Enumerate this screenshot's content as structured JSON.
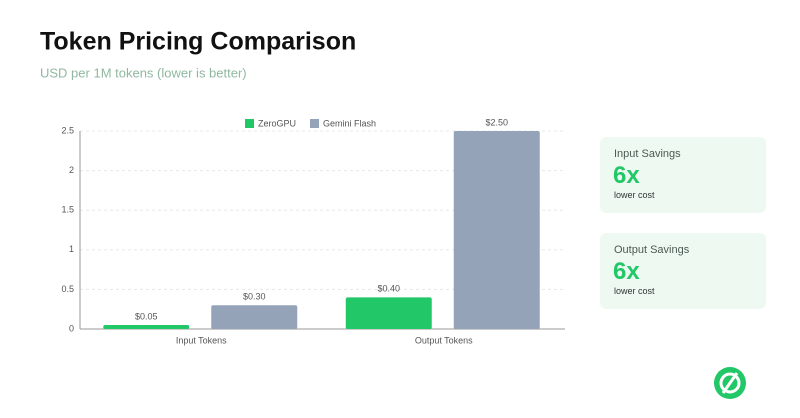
{
  "chart_data": {
    "type": "bar",
    "title": "Token Pricing Comparison",
    "subtitle": "USD per 1M tokens (lower is better)",
    "categories": [
      "Input Tokens",
      "Output Tokens"
    ],
    "series": [
      {
        "name": "ZeroGPU",
        "color": "#22c768",
        "values": [
          0.05,
          0.4
        ],
        "value_labels": [
          "$0.05",
          "$0.40"
        ]
      },
      {
        "name": "Gemini Flash",
        "color": "#94a3b8",
        "values": [
          0.3,
          2.5
        ],
        "value_labels": [
          "$0.30",
          "$2.50"
        ]
      }
    ],
    "ylim": [
      0,
      2.5
    ],
    "yticks": [
      0,
      0.5,
      1,
      1.5,
      2,
      2.5
    ],
    "grid": true,
    "legend": "top"
  },
  "cards": [
    {
      "label": "Input Savings",
      "value": "6x",
      "note": "lower cost"
    },
    {
      "label": "Output Savings",
      "value": "6x",
      "note": "lower cost"
    }
  ]
}
